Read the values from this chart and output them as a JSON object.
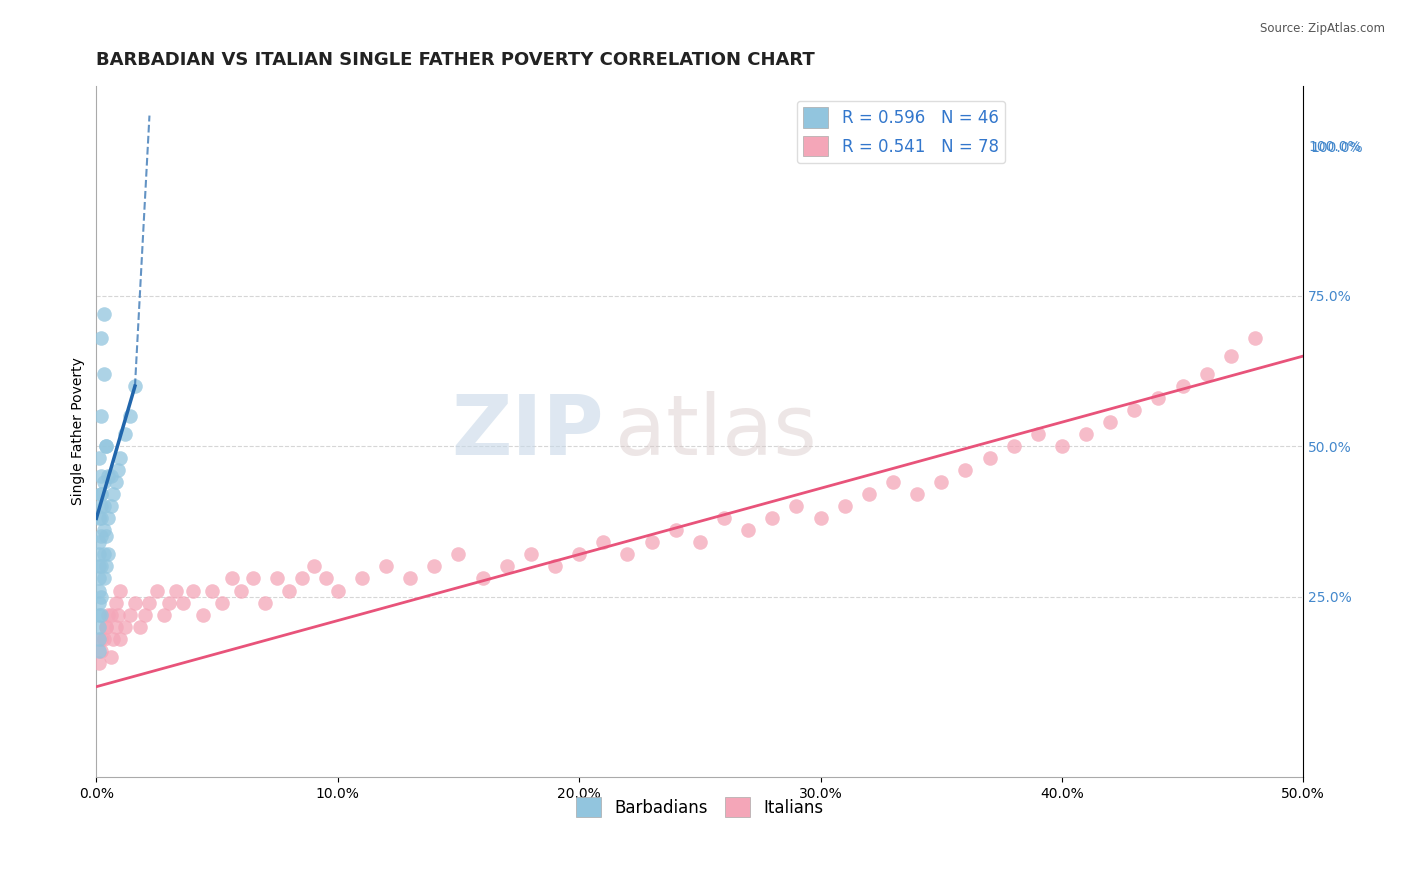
{
  "title": "BARBADIAN VS ITALIAN SINGLE FATHER POVERTY CORRELATION CHART",
  "source_text": "Source: ZipAtlas.com",
  "ylabel": "Single Father Poverty",
  "xlim": [
    0.0,
    0.5
  ],
  "ylim": [
    -0.05,
    1.1
  ],
  "xticks": [
    0.0,
    0.1,
    0.2,
    0.3,
    0.4,
    0.5
  ],
  "xticklabels": [
    "0.0%",
    "10.0%",
    "20.0%",
    "30.0%",
    "40.0%",
    "50.0%"
  ],
  "right_ytick_vals": [
    0.25,
    0.5,
    0.75,
    1.0
  ],
  "right_yticklabels": [
    "25.0%",
    "50.0%",
    "75.0%",
    "100.0%"
  ],
  "right_ytick_top_val": 1.0,
  "right_ytick_top_label": "100.0%",
  "barbadian_color": "#92c5de",
  "italian_color": "#f4a6b8",
  "barbadian_R": 0.596,
  "barbadian_N": 46,
  "italian_R": 0.541,
  "italian_N": 78,
  "trend_blue_color": "#2166ac",
  "trend_pink_color": "#e8537a",
  "background_color": "#ffffff",
  "grid_color": "#cccccc",
  "watermark_zip": "ZIP",
  "watermark_atlas": "atlas",
  "title_fontsize": 13,
  "axis_label_fontsize": 10,
  "tick_fontsize": 10,
  "legend_fontsize": 12,
  "barbadian_x": [
    0.001,
    0.001,
    0.001,
    0.001,
    0.001,
    0.001,
    0.001,
    0.001,
    0.001,
    0.001,
    0.002,
    0.002,
    0.002,
    0.002,
    0.002,
    0.002,
    0.002,
    0.002,
    0.003,
    0.003,
    0.003,
    0.003,
    0.003,
    0.004,
    0.004,
    0.004,
    0.005,
    0.005,
    0.006,
    0.006,
    0.007,
    0.008,
    0.009,
    0.01,
    0.012,
    0.014,
    0.016,
    0.002,
    0.003,
    0.001,
    0.002,
    0.003,
    0.004,
    0.005,
    0.001,
    0.002
  ],
  "barbadian_y": [
    0.2,
    0.22,
    0.24,
    0.26,
    0.28,
    0.3,
    0.32,
    0.34,
    0.18,
    0.16,
    0.25,
    0.3,
    0.35,
    0.38,
    0.4,
    0.42,
    0.45,
    0.22,
    0.28,
    0.32,
    0.36,
    0.4,
    0.44,
    0.3,
    0.35,
    0.5,
    0.32,
    0.38,
    0.4,
    0.45,
    0.42,
    0.44,
    0.46,
    0.48,
    0.52,
    0.55,
    0.6,
    0.68,
    0.72,
    0.48,
    0.55,
    0.62,
    0.5,
    0.45,
    0.38,
    0.42
  ],
  "italian_x": [
    0.001,
    0.002,
    0.003,
    0.004,
    0.005,
    0.006,
    0.007,
    0.008,
    0.009,
    0.01,
    0.012,
    0.014,
    0.016,
    0.018,
    0.02,
    0.022,
    0.025,
    0.028,
    0.03,
    0.033,
    0.036,
    0.04,
    0.044,
    0.048,
    0.052,
    0.056,
    0.06,
    0.065,
    0.07,
    0.075,
    0.08,
    0.085,
    0.09,
    0.095,
    0.1,
    0.11,
    0.12,
    0.13,
    0.14,
    0.15,
    0.16,
    0.17,
    0.18,
    0.19,
    0.2,
    0.21,
    0.22,
    0.23,
    0.24,
    0.25,
    0.26,
    0.27,
    0.28,
    0.29,
    0.3,
    0.31,
    0.32,
    0.33,
    0.34,
    0.35,
    0.36,
    0.37,
    0.38,
    0.39,
    0.4,
    0.41,
    0.42,
    0.43,
    0.44,
    0.45,
    0.46,
    0.47,
    0.48,
    0.002,
    0.004,
    0.006,
    0.008,
    0.01
  ],
  "italian_y": [
    0.14,
    0.16,
    0.18,
    0.2,
    0.22,
    0.15,
    0.18,
    0.2,
    0.22,
    0.18,
    0.2,
    0.22,
    0.24,
    0.2,
    0.22,
    0.24,
    0.26,
    0.22,
    0.24,
    0.26,
    0.24,
    0.26,
    0.22,
    0.26,
    0.24,
    0.28,
    0.26,
    0.28,
    0.24,
    0.28,
    0.26,
    0.28,
    0.3,
    0.28,
    0.26,
    0.28,
    0.3,
    0.28,
    0.3,
    0.32,
    0.28,
    0.3,
    0.32,
    0.3,
    0.32,
    0.34,
    0.32,
    0.34,
    0.36,
    0.34,
    0.38,
    0.36,
    0.38,
    0.4,
    0.38,
    0.4,
    0.42,
    0.44,
    0.42,
    0.44,
    0.46,
    0.48,
    0.5,
    0.52,
    0.5,
    0.52,
    0.54,
    0.56,
    0.58,
    0.6,
    0.62,
    0.65,
    0.68,
    0.18,
    0.2,
    0.22,
    0.24,
    0.26
  ],
  "blue_trend_x0": 0.0,
  "blue_trend_y0": 0.38,
  "blue_trend_x1": 0.016,
  "blue_trend_y1": 0.6,
  "blue_trend_dashed_x0": 0.016,
  "blue_trend_dashed_y0": 0.6,
  "blue_trend_dashed_x1": 0.022,
  "blue_trend_dashed_y1": 1.05,
  "pink_trend_x0": 0.0,
  "pink_trend_y0": 0.1,
  "pink_trend_x1": 0.5,
  "pink_trend_y1": 0.65
}
